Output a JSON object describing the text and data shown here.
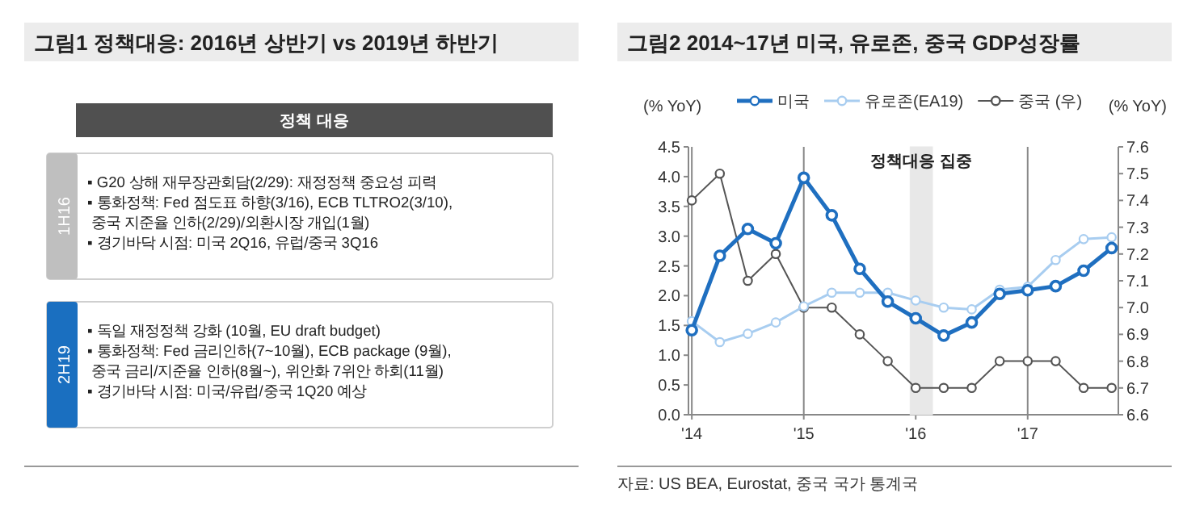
{
  "chart_data": [
    {
      "type": "other",
      "title": "그림1 정책대응: 2016년 상반기 vs 2019년 하반기",
      "categories": [
        "1H16",
        "2H19"
      ],
      "colors": [
        "#bfbfbf",
        "#1a6fc0"
      ],
      "annotations": [
        "정책 대응",
        "▪ G20 상해 재무장관회담(2/29): 재정정책 중요성 피력\n▪ 통화정책: Fed 점도표 하향(3/16), ECB TLTRO2(3/10),\n   중국 지준율 인하(2/29)/외환시장 개입(1월)\n▪ 경기바닥 시점: 미국 2Q16, 유럽/중국 3Q16",
        "▪ 독일 재정정책 강화 (10월, EU draft budget)\n▪ 통화정책: Fed 금리인하(7~10월), ECB package (9월),\n   중국 금리/지준율 인하(8월~), 위안화 7위안 하회(11월)\n▪ 경기바닥 시점: 미국/유럽/중국 1Q20 예상"
      ]
    },
    {
      "type": "line",
      "title": "그림2 2014~17년 미국, 유로존, 중국 GDP성장률",
      "ylabel": "(% YoY)",
      "y2label": "(% YoY)",
      "x": [
        2014,
        2014.25,
        2014.5,
        2014.75,
        2015,
        2015.25,
        2015.5,
        2015.75,
        2016,
        2016.25,
        2016.5,
        2016.75,
        2017,
        2017.25,
        2017.5,
        2017.75
      ],
      "series": [
        {
          "name": "미국",
          "color": "#1f6fc0",
          "values": [
            1.42,
            2.67,
            3.12,
            2.88,
            3.98,
            3.35,
            2.45,
            1.9,
            1.62,
            1.33,
            1.55,
            2.03,
            2.09,
            2.16,
            2.42,
            2.8
          ]
        },
        {
          "name": "유로존(EA19)",
          "color": "#a8cdf0",
          "values": [
            1.57,
            1.22,
            1.36,
            1.55,
            1.82,
            2.05,
            2.05,
            2.05,
            1.92,
            1.8,
            1.77,
            2.1,
            2.15,
            2.6,
            2.95,
            2.98
          ]
        },
        {
          "name": "중국 (우)",
          "color": "#555555",
          "axis": "y2",
          "values": [
            7.4,
            7.5,
            7.1,
            7.2,
            7.0,
            7.0,
            6.9,
            6.8,
            6.7,
            6.7,
            6.7,
            6.8,
            6.8,
            6.8,
            6.7,
            6.7
          ]
        }
      ],
      "xlim": [
        2013.97,
        2017.81
      ],
      "xticks": [
        {
          "value": 2014,
          "label": "'14"
        },
        {
          "value": 2015,
          "label": "'15"
        },
        {
          "value": 2016,
          "label": "'16"
        },
        {
          "value": 2017,
          "label": "'17"
        }
      ],
      "ylim": [
        0,
        4.5
      ],
      "yticks": [
        {
          "value": 0,
          "label": "0.0"
        },
        0.5,
        {
          "value": 1,
          "label": "1.0"
        },
        1.5,
        {
          "value": 2,
          "label": "2.0"
        },
        2.5,
        {
          "value": 3,
          "label": "3.0"
        },
        3.5,
        {
          "value": 4,
          "label": "4.0"
        },
        4.5
      ],
      "y2lim": [
        6.6,
        7.6
      ],
      "y2ticks": [
        6.6,
        6.7,
        6.8,
        6.9,
        {
          "value": 7,
          "label": "7.0"
        },
        7.1,
        7.2,
        7.3,
        7.4,
        7.5,
        7.6
      ],
      "grid": "x",
      "legend": "top",
      "marker": "circle",
      "line_style": "solid",
      "bands": [
        {
          "axis": "x",
          "from": 2015.95,
          "to": 2016.15,
          "label": "정책대응 집중",
          "color": "#e8e8e8"
        }
      ],
      "annotations": [
        "자료: US BEA, Eurostat, 중국 국가 통계국"
      ]
    }
  ]
}
